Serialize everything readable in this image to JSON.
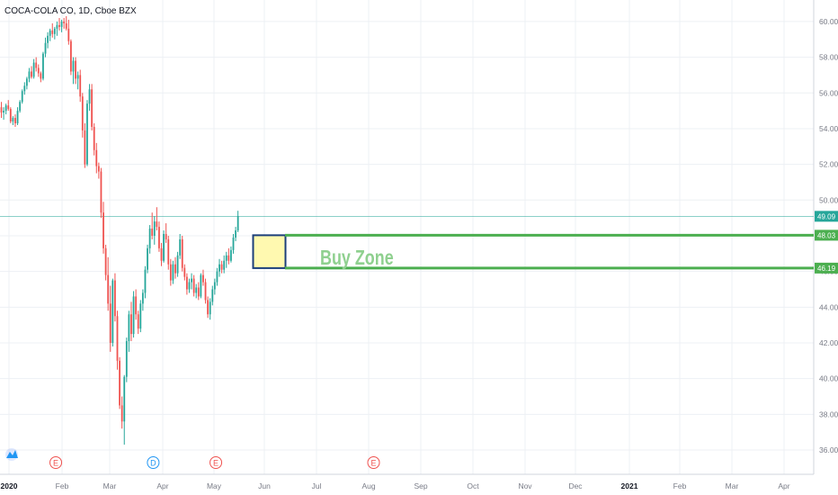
{
  "header": {
    "title": "COCA-COLA CO, 1D, Cboe BZX"
  },
  "chart_data": {
    "type": "candlestick",
    "title": "COCA-COLA CO, 1D, Cboe BZX",
    "ylim": [
      35.3,
      61.0
    ],
    "y_ticks": [
      "36.00",
      "38.00",
      "40.00",
      "42.00",
      "44.00",
      "46.00",
      "48.00",
      "50.00",
      "52.00",
      "54.00",
      "56.00",
      "58.00",
      "60.00"
    ],
    "x_ticks": [
      "2020",
      "Feb",
      "Mar",
      "Apr",
      "May",
      "Jun",
      "Jul",
      "Aug",
      "Sep",
      "Oct",
      "Nov",
      "Dec",
      "2021",
      "Feb",
      "Mar",
      "Apr"
    ],
    "x_tick_bold": [
      true,
      false,
      false,
      false,
      false,
      false,
      false,
      false,
      false,
      false,
      false,
      false,
      true,
      false,
      false,
      false
    ],
    "grid": true,
    "colors": {
      "up": "#26a69a",
      "down": "#ef5350",
      "zone_line": "#4caf50",
      "zone_text": "#8fd08f",
      "price_line": "#26a69a",
      "box_fill": "#fff9b0",
      "box_border": "#1c3f7a"
    },
    "candles": [
      [
        55.2,
        55.5,
        54.6,
        54.9
      ],
      [
        54.9,
        55.2,
        54.5,
        55.0
      ],
      [
        55.0,
        55.4,
        54.8,
        55.3
      ],
      [
        55.3,
        55.6,
        55.0,
        55.1
      ],
      [
        55.1,
        55.2,
        54.3,
        54.4
      ],
      [
        54.4,
        54.7,
        54.2,
        54.6
      ],
      [
        54.6,
        54.8,
        54.1,
        54.3
      ],
      [
        54.3,
        55.2,
        54.2,
        55.0
      ],
      [
        55.0,
        55.6,
        54.9,
        55.5
      ],
      [
        55.5,
        56.2,
        55.4,
        56.1
      ],
      [
        56.1,
        56.6,
        55.9,
        56.4
      ],
      [
        56.4,
        56.9,
        56.2,
        56.8
      ],
      [
        56.8,
        57.4,
        56.6,
        57.2
      ],
      [
        57.2,
        57.5,
        56.8,
        56.9
      ],
      [
        56.9,
        57.9,
        56.8,
        57.7
      ],
      [
        57.7,
        58.0,
        57.2,
        57.4
      ],
      [
        57.4,
        57.6,
        56.9,
        57.1
      ],
      [
        57.1,
        57.2,
        56.6,
        56.8
      ],
      [
        56.8,
        58.3,
        56.7,
        58.2
      ],
      [
        58.2,
        59.1,
        58.0,
        58.8
      ],
      [
        58.8,
        59.4,
        58.5,
        59.2
      ],
      [
        59.2,
        59.6,
        58.9,
        59.5
      ],
      [
        59.5,
        59.9,
        59.1,
        59.3
      ],
      [
        59.3,
        59.7,
        59.0,
        59.6
      ],
      [
        59.6,
        60.0,
        59.2,
        59.8
      ],
      [
        59.8,
        60.2,
        59.5,
        59.7
      ],
      [
        59.7,
        60.1,
        59.4,
        60.0
      ],
      [
        60.0,
        60.2,
        59.6,
        59.9
      ],
      [
        59.9,
        60.3,
        59.5,
        59.6
      ],
      [
        59.6,
        60.1,
        58.7,
        58.9
      ],
      [
        58.9,
        59.0,
        57.0,
        57.2
      ],
      [
        57.2,
        58.0,
        56.5,
        57.8
      ],
      [
        57.8,
        58.0,
        56.5,
        56.8
      ],
      [
        56.8,
        57.2,
        56.2,
        57.0
      ],
      [
        57.0,
        57.3,
        55.5,
        55.8
      ],
      [
        55.8,
        56.0,
        53.5,
        53.9
      ],
      [
        53.9,
        54.3,
        51.8,
        52.0
      ],
      [
        52.0,
        55.6,
        51.9,
        55.4
      ],
      [
        55.4,
        56.5,
        55.0,
        56.2
      ],
      [
        56.2,
        56.5,
        53.9,
        54.1
      ],
      [
        54.1,
        54.3,
        52.5,
        52.8
      ],
      [
        52.8,
        53.2,
        51.5,
        51.9
      ],
      [
        51.9,
        52.1,
        51.2,
        51.6
      ],
      [
        51.6,
        51.8,
        49.0,
        49.3
      ],
      [
        49.3,
        49.9,
        47.0,
        47.3
      ],
      [
        47.3,
        47.5,
        45.5,
        45.8
      ],
      [
        45.8,
        46.8,
        43.8,
        44.2
      ],
      [
        44.2,
        45.2,
        41.5,
        42.0
      ],
      [
        42.0,
        45.6,
        41.8,
        45.5
      ],
      [
        45.5,
        45.9,
        43.2,
        43.5
      ],
      [
        43.5,
        43.8,
        40.5,
        41.0
      ],
      [
        41.0,
        41.2,
        38.3,
        38.5
      ],
      [
        38.5,
        39.0,
        37.2,
        37.6
      ],
      [
        37.6,
        40.2,
        36.3,
        40.1
      ],
      [
        40.1,
        42.3,
        39.8,
        42.1
      ],
      [
        42.1,
        43.8,
        41.5,
        43.6
      ],
      [
        43.6,
        44.3,
        42.1,
        42.5
      ],
      [
        42.5,
        44.9,
        42.3,
        44.6
      ],
      [
        44.6,
        45.0,
        43.3,
        43.6
      ],
      [
        43.6,
        43.8,
        42.5,
        42.8
      ],
      [
        42.8,
        44.4,
        42.6,
        44.2
      ],
      [
        44.2,
        45.0,
        43.8,
        44.8
      ],
      [
        44.8,
        46.3,
        44.5,
        46.1
      ],
      [
        46.1,
        47.5,
        45.9,
        47.3
      ],
      [
        47.3,
        48.6,
        47.0,
        48.4
      ],
      [
        48.4,
        49.3,
        47.8,
        48.0
      ],
      [
        48.0,
        49.1,
        47.5,
        48.8
      ],
      [
        48.8,
        49.6,
        48.3,
        48.5
      ],
      [
        48.5,
        48.8,
        47.1,
        47.3
      ],
      [
        47.3,
        47.6,
        46.3,
        46.6
      ],
      [
        46.6,
        48.3,
        46.5,
        48.1
      ],
      [
        48.1,
        48.7,
        47.6,
        47.8
      ],
      [
        47.8,
        48.0,
        46.1,
        46.4
      ],
      [
        46.4,
        46.7,
        45.2,
        45.5
      ],
      [
        45.5,
        46.6,
        45.3,
        46.4
      ],
      [
        46.4,
        46.8,
        45.6,
        45.9
      ],
      [
        45.9,
        47.1,
        45.7,
        46.9
      ],
      [
        46.9,
        48.1,
        46.7,
        47.8
      ],
      [
        47.8,
        48.0,
        46.0,
        46.2
      ],
      [
        46.2,
        46.4,
        45.5,
        45.7
      ],
      [
        45.7,
        45.9,
        44.7,
        45.0
      ],
      [
        45.0,
        45.6,
        44.8,
        45.4
      ],
      [
        45.4,
        45.9,
        45.0,
        45.6
      ],
      [
        45.6,
        45.8,
        44.6,
        44.8
      ],
      [
        44.8,
        45.3,
        44.5,
        45.1
      ],
      [
        45.1,
        45.4,
        44.4,
        44.6
      ],
      [
        44.6,
        45.9,
        44.5,
        45.8
      ],
      [
        45.8,
        46.1,
        45.2,
        45.4
      ],
      [
        45.4,
        45.6,
        44.2,
        44.4
      ],
      [
        44.4,
        44.6,
        43.4,
        43.6
      ],
      [
        43.6,
        44.5,
        43.3,
        44.3
      ],
      [
        44.3,
        45.2,
        44.1,
        45.0
      ],
      [
        45.0,
        45.6,
        44.7,
        45.4
      ],
      [
        45.4,
        46.2,
        45.2,
        46.0
      ],
      [
        46.0,
        46.7,
        45.7,
        46.4
      ],
      [
        46.4,
        46.6,
        45.9,
        46.1
      ],
      [
        46.1,
        46.9,
        45.9,
        46.6
      ],
      [
        46.6,
        47.1,
        46.2,
        46.9
      ],
      [
        46.9,
        47.3,
        46.4,
        46.6
      ],
      [
        46.6,
        47.4,
        46.5,
        47.2
      ],
      [
        47.2,
        48.1,
        47.0,
        47.9
      ],
      [
        47.9,
        48.5,
        47.7,
        48.3
      ],
      [
        48.3,
        49.4,
        48.2,
        49.1
      ]
    ],
    "price_level": {
      "value": "49.09",
      "price": 49.09
    },
    "zone": {
      "label": "Buy Zone",
      "upper": {
        "value": "48.03",
        "price": 48.03
      },
      "lower": {
        "value": "46.19",
        "price": 46.19
      }
    },
    "events": [
      {
        "label": "E",
        "type": "earnings",
        "color": "#ef5350",
        "after_candle": 13
      },
      {
        "label": "D",
        "type": "dividend",
        "color": "#2196f3",
        "after_candle": 55
      },
      {
        "label": "E",
        "type": "earnings",
        "color": "#ef5350",
        "after_candle": 82
      },
      {
        "label": "E",
        "type": "earnings",
        "color": "#ef5350",
        "after_candle": 150
      }
    ]
  }
}
